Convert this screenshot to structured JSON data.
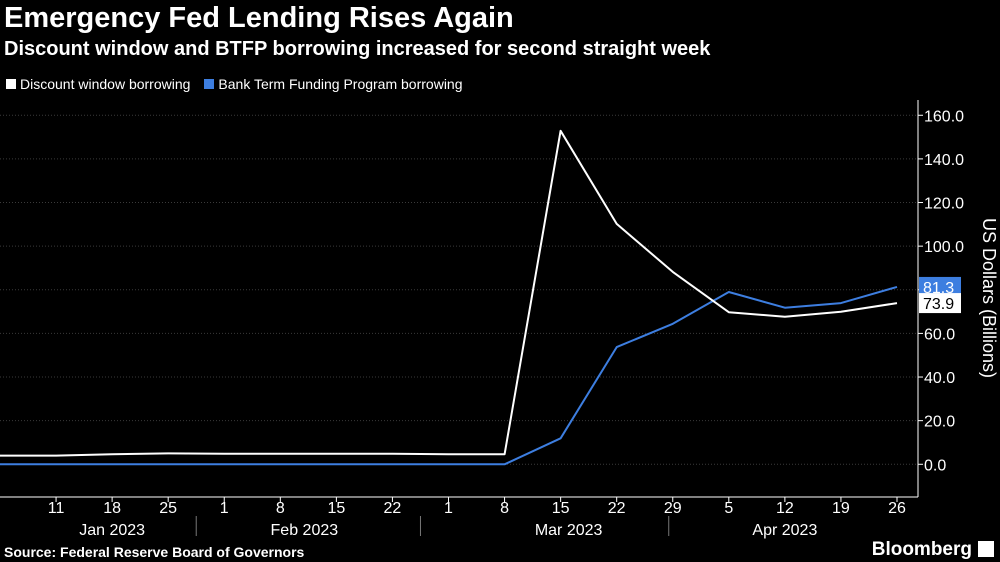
{
  "header": {
    "title": "Emergency Fed Lending Rises Again",
    "subtitle": "Discount window and BTFP borrowing increased for second straight week"
  },
  "footer": {
    "source": "Source: Federal Reserve Board of Governors",
    "brand": "Bloomberg"
  },
  "colors": {
    "background": "#000000",
    "discount": "#ffffff",
    "btfp": "#3d7ee0",
    "grid": "#3a3a3a"
  },
  "chart_data": {
    "type": "line",
    "x": [
      "2023-01-04",
      "2023-01-11",
      "2023-01-18",
      "2023-01-25",
      "2023-02-01",
      "2023-02-08",
      "2023-02-15",
      "2023-02-22",
      "2023-03-01",
      "2023-03-08",
      "2023-03-15",
      "2023-03-22",
      "2023-03-29",
      "2023-04-05",
      "2023-04-12",
      "2023-04-19",
      "2023-04-26"
    ],
    "x_tick_labels": [
      "11",
      "18",
      "25",
      "1",
      "8",
      "15",
      "22",
      "1",
      "8",
      "15",
      "22",
      "29",
      "5",
      "12",
      "19",
      "26"
    ],
    "x_tick_dates": [
      "2023-01-11",
      "2023-01-18",
      "2023-01-25",
      "2023-02-01",
      "2023-02-08",
      "2023-02-15",
      "2023-02-22",
      "2023-03-01",
      "2023-03-08",
      "2023-03-15",
      "2023-03-22",
      "2023-03-29",
      "2023-04-05",
      "2023-04-12",
      "2023-04-19",
      "2023-04-26"
    ],
    "month_labels": [
      "Jan 2023",
      "Feb 2023",
      "Mar 2023",
      "Apr 2023"
    ],
    "series": [
      {
        "name": "Discount window borrowing",
        "color": "#ffffff",
        "values": [
          4.0,
          4.0,
          4.6,
          5.0,
          4.8,
          4.8,
          4.8,
          4.8,
          4.6,
          4.6,
          152.9,
          110.2,
          88.2,
          69.7,
          67.6,
          69.9,
          73.9
        ],
        "end_label": "73.9"
      },
      {
        "name": "Bank Term Funding Program borrowing",
        "color": "#3d7ee0",
        "values": [
          0,
          0,
          0,
          0,
          0,
          0,
          0,
          0,
          0,
          0,
          11.9,
          53.7,
          64.4,
          79.0,
          71.8,
          73.9,
          81.3
        ],
        "end_label": "81.3"
      }
    ],
    "y_ticks": [
      "160.0",
      "140.0",
      "120.0",
      "100.0",
      "80.0",
      "60.0",
      "40.0",
      "20.0",
      "0.0"
    ],
    "ylim": [
      -15,
      167
    ],
    "ylabel": "US Dollars (Billions)",
    "grid": "horizontal",
    "legend": "top-left"
  }
}
